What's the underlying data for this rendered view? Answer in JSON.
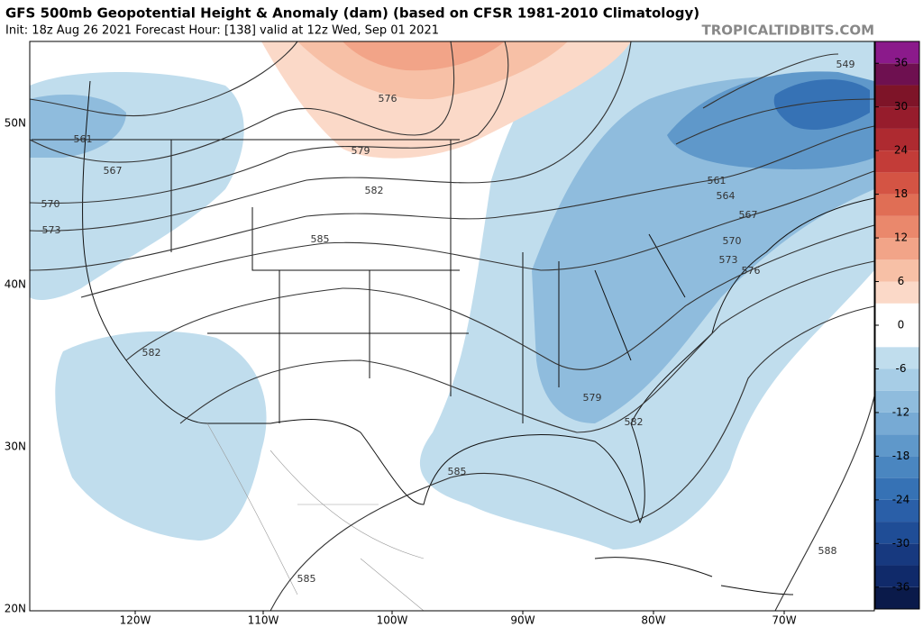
{
  "header": {
    "title": "GFS 500mb Geopotential Height & Anomaly (dam) (based on CFSR 1981-2010 Climatology)",
    "subtitle": "Init: 18z Aug 26 2021   Forecast Hour: [138]   valid at 12z Wed, Sep 01 2021",
    "watermark": "TROPICALTIDBITS.COM"
  },
  "map": {
    "latitude_labels": [
      "50N",
      "40N",
      "30N",
      "20N"
    ],
    "longitude_labels": [
      "120W",
      "110W",
      "100W",
      "90W",
      "80W",
      "70W"
    ],
    "contour_labels": [
      561,
      567,
      570,
      573,
      576,
      579,
      582,
      585,
      582,
      579,
      582,
      585,
      585,
      588,
      549,
      561,
      564,
      567,
      570,
      573,
      576
    ]
  },
  "colorbar": {
    "range": [
      -39,
      39
    ],
    "ticks": [
      36,
      30,
      24,
      18,
      12,
      6,
      0,
      -6,
      -12,
      -18,
      -24,
      -30,
      -36
    ],
    "colors": [
      "#0a1a4a",
      "#102a6a",
      "#17397f",
      "#1f4d96",
      "#2a5fa8",
      "#3672b5",
      "#4a86c0",
      "#5f98ca",
      "#77aad4",
      "#8fbcdd",
      "#a7cde6",
      "#c0dded",
      "#ffffff",
      "#ffffff",
      "#fbd9c8",
      "#f7c0a6",
      "#f2a488",
      "#ea886c",
      "#e06e55",
      "#d45444",
      "#c33c38",
      "#ae2a30",
      "#961c2c",
      "#7e1428",
      "#6e1050",
      "#8b1a8b"
    ]
  }
}
